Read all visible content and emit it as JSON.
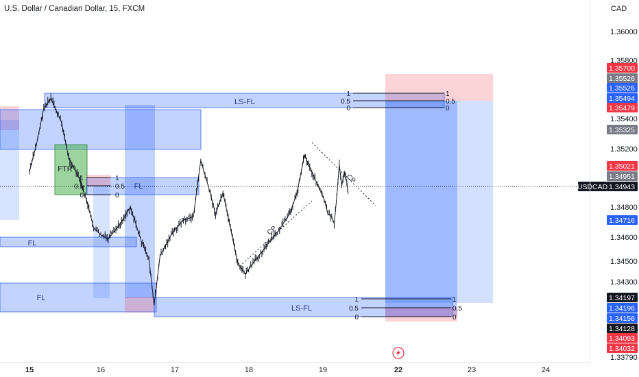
{
  "header": {
    "title": "U.S. Dollar / Canadian Dollar, 15, FXCM",
    "currency": "CAD"
  },
  "colors": {
    "blue_zone": "#2962ff",
    "red_zone": "#f23645",
    "green_zone": "#4caf50",
    "candle": "#131722",
    "axis_text": "#131722"
  },
  "chart_data": {
    "type": "candlestick",
    "symbol_label": "USDCAD",
    "ylim": [
      1.3378,
      1.3622
    ],
    "y_ticks": [
      "1.36000",
      "1.35800",
      "1.35400",
      "1.35200",
      "1.34800",
      "1.34600",
      "1.34500",
      "1.34300",
      "1.33790"
    ],
    "x_ticks": [
      "15",
      "16",
      "17",
      "18",
      "19",
      "22",
      "23",
      "24"
    ],
    "price_badges": [
      {
        "text": "1.35700",
        "kind": "red"
      },
      {
        "text": "1.35526",
        "kind": "gray"
      },
      {
        "text": "1.35526",
        "kind": "blue"
      },
      {
        "text": "1.35494",
        "kind": "blue"
      },
      {
        "text": "1.35479",
        "kind": "red"
      },
      {
        "text": "1.35325",
        "kind": "gray"
      },
      {
        "text": "1.35021",
        "kind": "red"
      },
      {
        "text": "1.34951",
        "kind": "gray"
      },
      {
        "text": "1.34943",
        "kind": "black"
      },
      {
        "text": "1.34716",
        "kind": "blue"
      },
      {
        "text": "1.34197",
        "kind": "black"
      },
      {
        "text": "1.34196",
        "kind": "blue"
      },
      {
        "text": "1.34156",
        "kind": "blue"
      },
      {
        "text": "1.34128",
        "kind": "black"
      },
      {
        "text": "1.34093",
        "kind": "red"
      },
      {
        "text": "1.34032",
        "kind": "red"
      }
    ],
    "zone_labels": [
      "LS-FL",
      "FL",
      "FL",
      "FL",
      "LS-FL",
      "FTR"
    ],
    "fib_levels": [
      "1",
      "0.5",
      "0"
    ],
    "annotations": [
      "CP",
      "CP"
    ],
    "price_path": [
      {
        "x": 15.0,
        "y": 1.351
      },
      {
        "x": 15.1,
        "y": 1.353
      },
      {
        "x": 15.2,
        "y": 1.3555
      },
      {
        "x": 15.3,
        "y": 1.3562
      },
      {
        "x": 15.45,
        "y": 1.3545
      },
      {
        "x": 15.55,
        "y": 1.352
      },
      {
        "x": 15.7,
        "y": 1.3505
      },
      {
        "x": 15.8,
        "y": 1.349
      },
      {
        "x": 15.9,
        "y": 1.347
      },
      {
        "x": 16.0,
        "y": 1.3465
      },
      {
        "x": 16.1,
        "y": 1.3462
      },
      {
        "x": 16.25,
        "y": 1.3472
      },
      {
        "x": 16.4,
        "y": 1.3485
      },
      {
        "x": 16.55,
        "y": 1.346
      },
      {
        "x": 16.65,
        "y": 1.3448
      },
      {
        "x": 16.72,
        "y": 1.3415
      },
      {
        "x": 16.8,
        "y": 1.345
      },
      {
        "x": 16.95,
        "y": 1.3465
      },
      {
        "x": 17.1,
        "y": 1.3475
      },
      {
        "x": 17.25,
        "y": 1.3478
      },
      {
        "x": 17.35,
        "y": 1.3518
      },
      {
        "x": 17.45,
        "y": 1.35
      },
      {
        "x": 17.55,
        "y": 1.348
      },
      {
        "x": 17.65,
        "y": 1.3495
      },
      {
        "x": 17.75,
        "y": 1.347
      },
      {
        "x": 17.85,
        "y": 1.3445
      },
      {
        "x": 17.95,
        "y": 1.3437
      },
      {
        "x": 18.1,
        "y": 1.3448
      },
      {
        "x": 18.25,
        "y": 1.3458
      },
      {
        "x": 18.4,
        "y": 1.3468
      },
      {
        "x": 18.55,
        "y": 1.348
      },
      {
        "x": 18.65,
        "y": 1.3495
      },
      {
        "x": 18.75,
        "y": 1.3522
      },
      {
        "x": 18.85,
        "y": 1.351
      },
      {
        "x": 18.95,
        "y": 1.3498
      },
      {
        "x": 19.05,
        "y": 1.349
      },
      {
        "x": 19.2,
        "y": 1.348
      },
      {
        "x": 19.35,
        "y": 1.3478
      },
      {
        "x": 19.45,
        "y": 1.3473
      },
      {
        "x": 19.55,
        "y": 1.3492
      },
      {
        "x": 19.65,
        "y": 1.3515
      },
      {
        "x": 19.75,
        "y": 1.35
      },
      {
        "x": 19.85,
        "y": 1.351
      },
      {
        "x": 19.95,
        "y": 1.3503
      },
      {
        "x": 20.0,
        "y": 1.3494
      }
    ]
  }
}
